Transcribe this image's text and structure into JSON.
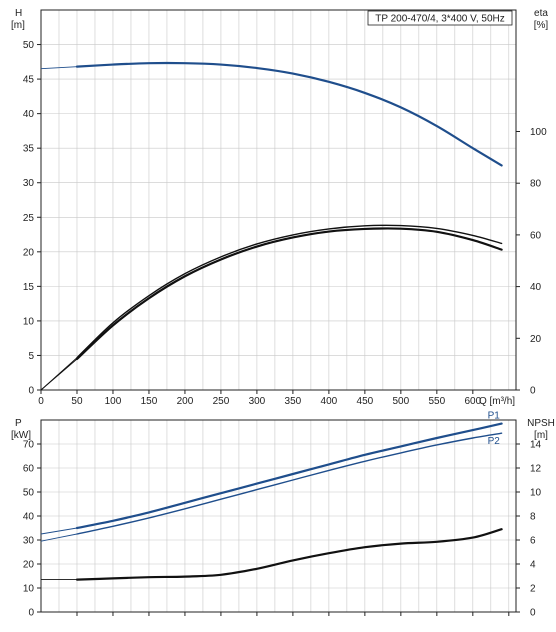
{
  "chart_data": [
    {
      "type": "line",
      "title": "TP 200-470/4, 3*400 V, 50Hz",
      "xlabel": "Q [m³/h]",
      "x_ticks": [
        "0",
        "50",
        "100",
        "150",
        "200",
        "250",
        "300",
        "350",
        "400",
        "450",
        "500",
        "550",
        "600"
      ],
      "xlim": [
        0,
        660
      ],
      "axes": {
        "left": {
          "label_line1": "H",
          "label_line2": "[m]",
          "ylim": [
            0,
            55
          ],
          "ticks": [
            "0",
            "5",
            "10",
            "15",
            "20",
            "25",
            "30",
            "35",
            "40",
            "45",
            "50"
          ]
        },
        "right": {
          "label_line1": "eta",
          "label_line2": "[%]",
          "ylim": [
            0,
            147
          ],
          "ticks": [
            "0",
            "20",
            "40",
            "60",
            "80",
            "100"
          ]
        }
      },
      "grid": true,
      "series": [
        {
          "key": "H",
          "axis": "left",
          "color": "#1f4e8c",
          "x": [
            0,
            50,
            100,
            150,
            200,
            250,
            300,
            350,
            400,
            450,
            500,
            550,
            600,
            640
          ],
          "y": [
            46.5,
            46.8,
            47.1,
            47.3,
            47.3,
            47.1,
            46.6,
            45.8,
            44.6,
            43.0,
            40.9,
            38.2,
            35.0,
            32.5
          ],
          "dashed_until": 50
        },
        {
          "key": "eta1",
          "axis": "right",
          "color": "#111111",
          "x": [
            0,
            50,
            100,
            150,
            200,
            250,
            300,
            350,
            400,
            450,
            500,
            550,
            600,
            640
          ],
          "y": [
            0,
            12.5,
            26,
            36.5,
            45,
            51.5,
            56.5,
            60,
            62.3,
            63.5,
            63.6,
            62.5,
            59.8,
            56.7
          ],
          "dashed_until": 50
        },
        {
          "key": "eta2",
          "axis": "right",
          "color": "#111111",
          "x": [
            0,
            50,
            100,
            150,
            200,
            250,
            300,
            350,
            400,
            450,
            500,
            550,
            600,
            640
          ],
          "y": [
            0,
            12,
            25,
            35.5,
            44,
            50.5,
            55.5,
            59,
            61.3,
            62.3,
            62.4,
            61.2,
            58.0,
            54.3
          ],
          "dashed_until": 50
        }
      ]
    },
    {
      "type": "line",
      "xlim": [
        0,
        660
      ],
      "axes": {
        "left": {
          "label_line1": "P",
          "label_line2": "[kW]",
          "ylim": [
            0,
            80
          ],
          "ticks": [
            "0",
            "10",
            "20",
            "30",
            "40",
            "50",
            "60",
            "70"
          ]
        },
        "right": {
          "label_line1": "NPSH",
          "label_line2": "[m]",
          "ylim": [
            0,
            16
          ],
          "ticks": [
            "0",
            "2",
            "4",
            "6",
            "8",
            "10",
            "12",
            "14"
          ]
        }
      },
      "grid": true,
      "series": [
        {
          "name": "P1",
          "axis": "left",
          "color": "#1f4e8c",
          "x": [
            0,
            50,
            100,
            150,
            200,
            250,
            300,
            350,
            400,
            450,
            500,
            550,
            600,
            640
          ],
          "y": [
            32.5,
            35.0,
            38.0,
            41.5,
            45.5,
            49.5,
            53.5,
            57.5,
            61.5,
            65.5,
            69.0,
            72.5,
            75.8,
            78.5
          ],
          "dashed_until": 50
        },
        {
          "name": "P2",
          "axis": "left",
          "color": "#1f4e8c",
          "x": [
            0,
            50,
            100,
            150,
            200,
            250,
            300,
            350,
            400,
            450,
            500,
            550,
            600,
            640
          ],
          "y": [
            29.5,
            32.5,
            35.7,
            39.2,
            43.0,
            47.0,
            51.0,
            55.0,
            59.0,
            62.8,
            66.3,
            69.6,
            72.5,
            74.5
          ],
          "dashed_until": 50
        },
        {
          "key": "NPSH",
          "axis": "right",
          "color": "#111111",
          "x": [
            0,
            50,
            100,
            150,
            200,
            250,
            300,
            350,
            400,
            450,
            500,
            550,
            600,
            640
          ],
          "y": [
            2.7,
            2.7,
            2.8,
            2.9,
            2.95,
            3.1,
            3.6,
            4.3,
            4.9,
            5.4,
            5.7,
            5.85,
            6.2,
            6.9
          ],
          "dashed_until": 50
        }
      ]
    }
  ]
}
